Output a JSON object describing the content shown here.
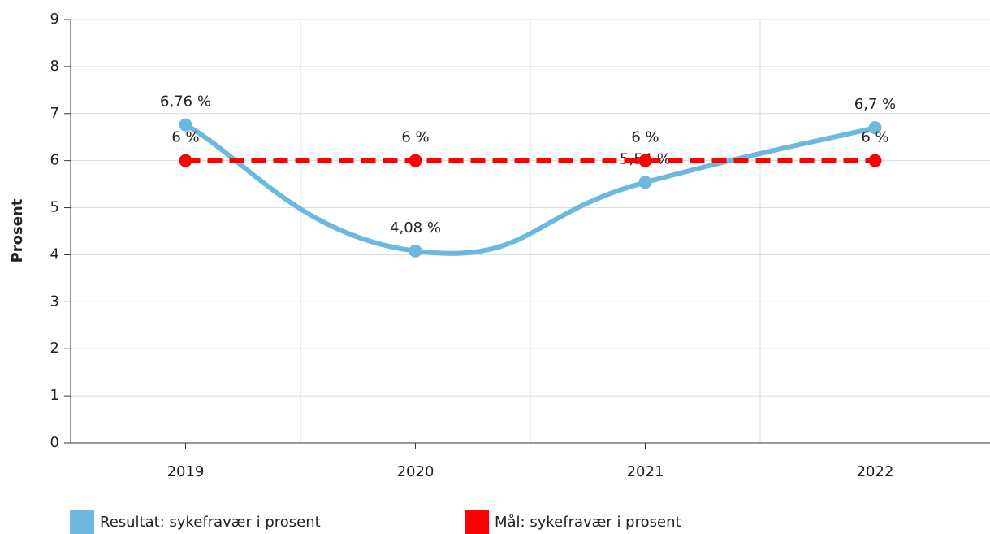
{
  "chart_data": {
    "type": "line",
    "y_label": "Prosent",
    "categories": [
      "2019",
      "2020",
      "2021",
      "2022"
    ],
    "series": [
      {
        "name": "Resultat: sykefravær i prosent",
        "color": "#6cb8de",
        "values": [
          6.76,
          4.08,
          5.54,
          6.7
        ],
        "value_labels": [
          "6,76 %",
          "4,08 %",
          "5,54 %",
          "6,7 %"
        ],
        "smooth": true,
        "dashed": false
      },
      {
        "name": "Mål: sykefravær i prosent",
        "color": "#ff0000",
        "values": [
          6,
          6,
          6,
          6
        ],
        "value_labels": [
          "6 %",
          "6 %",
          "6 %",
          "6 %"
        ],
        "smooth": false,
        "dashed": true
      }
    ],
    "ylim": [
      0,
      9
    ],
    "yticks": [
      0,
      1,
      2,
      3,
      4,
      5,
      6,
      7,
      8,
      9
    ],
    "grid": true,
    "legend": "bottom"
  }
}
